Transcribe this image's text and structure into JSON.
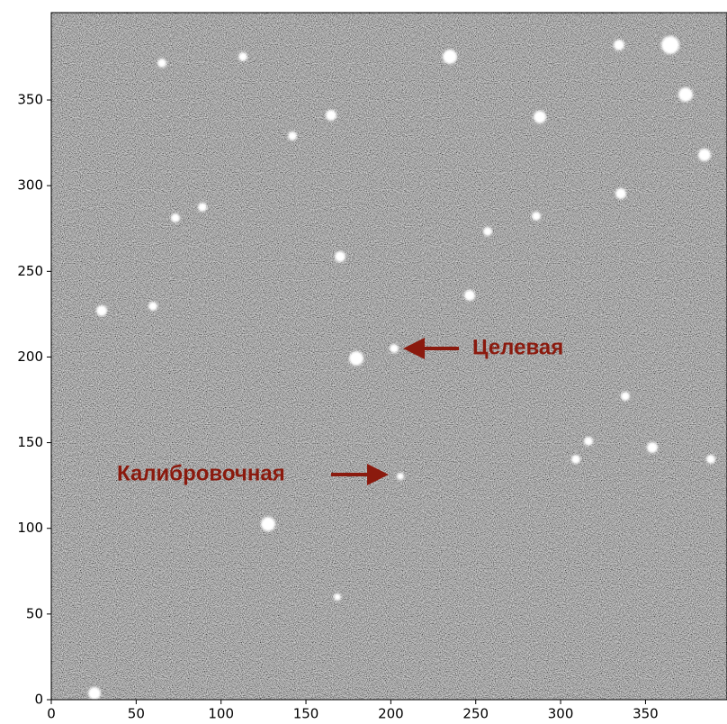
{
  "chart_data": {
    "type": "image",
    "xlim": [
      0,
      398
    ],
    "ylim": [
      0,
      401
    ],
    "xticks": [
      0,
      50,
      100,
      150,
      200,
      250,
      300,
      350
    ],
    "yticks": [
      0,
      50,
      100,
      150,
      200,
      250,
      300,
      350
    ],
    "annotations": [
      "Целевая",
      "Калибровочная"
    ],
    "annotation_color": "#8b1a0e"
  }
}
